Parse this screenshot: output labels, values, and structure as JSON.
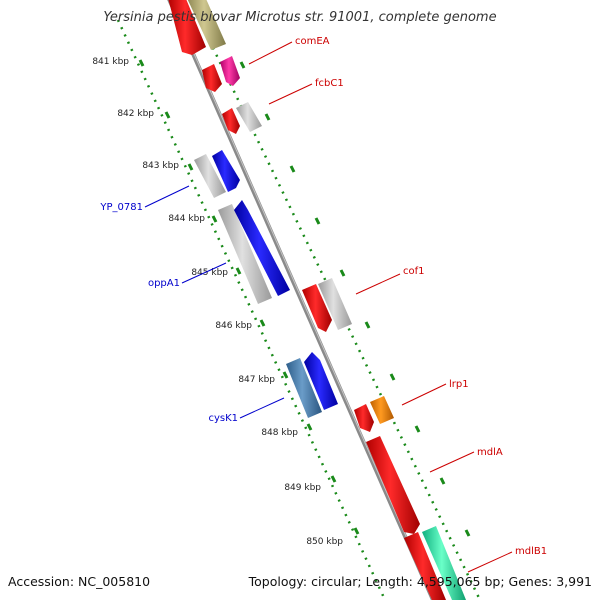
{
  "title": "Yersinia pestis biovar Microtus str. 91001, complete genome",
  "footer": {
    "accession": "Accession: NC_005810",
    "summary": "Topology: circular; Length: 4,595,065 bp; Genes: 3,991"
  },
  "colors": {
    "backbone": "#8a8a8a",
    "tick": "#1a8a1a",
    "forward_label": "#cc0000",
    "reverse_label": "#0000cc"
  },
  "ticks": [
    "841 kbp",
    "842 kbp",
    "843 kbp",
    "844 kbp",
    "845 kbp",
    "846 kbp",
    "847 kbp",
    "848 kbp",
    "849 kbp",
    "850 kbp"
  ],
  "gene_labels": {
    "comEA": "comEA",
    "fcbC1": "fcbC1",
    "YP_0781": "YP_0781",
    "oppA1": "oppA1",
    "cof1": "cof1",
    "lrp1": "lrp1",
    "mdlA": "mdlA",
    "mdlB1": "mdlB1",
    "cysK1": "cysK1"
  }
}
